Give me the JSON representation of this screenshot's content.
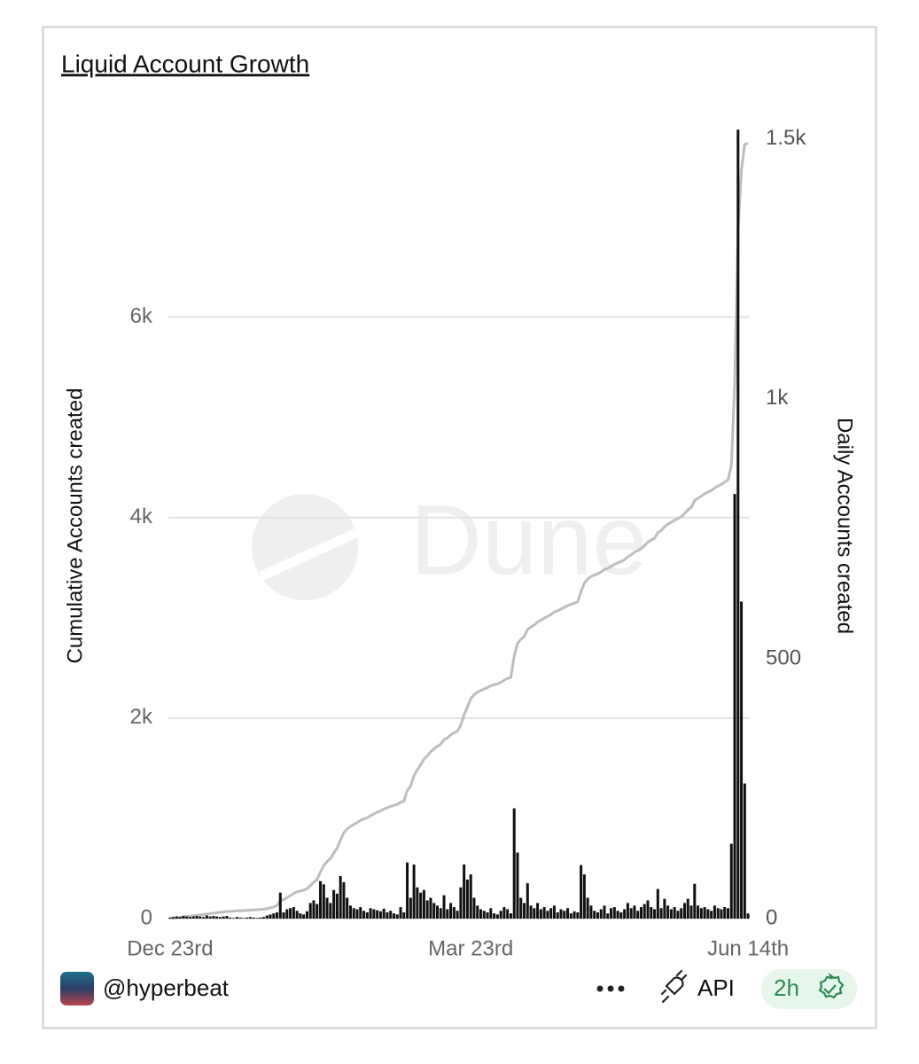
{
  "chart_data": {
    "type": "bar",
    "title": "Liquid Account Growth",
    "watermark": "Dune",
    "ylabel": "Cumulative Accounts created",
    "y2label": "Daily Accounts created",
    "categories": [
      "Dec 23rd",
      null,
      null,
      null,
      null,
      null,
      null,
      null,
      null,
      null,
      null,
      null,
      null,
      null,
      null,
      null,
      null,
      null,
      null,
      null,
      null,
      null,
      null,
      null,
      null,
      null,
      null,
      null,
      null,
      null,
      null,
      null,
      null,
      null,
      null,
      null,
      null,
      null,
      null,
      null,
      null,
      null,
      null,
      null,
      null,
      null,
      null,
      null,
      null,
      null,
      null,
      null,
      null,
      null,
      null,
      null,
      null,
      null,
      null,
      null,
      null,
      null,
      null,
      null,
      null,
      null,
      null,
      null,
      null,
      null,
      null,
      null,
      null,
      null,
      null,
      null,
      null,
      null,
      null,
      null,
      null,
      null,
      null,
      null,
      null,
      null,
      null,
      null,
      null,
      null,
      "Mar 23rd",
      null,
      null,
      null,
      null,
      null,
      null,
      null,
      null,
      null,
      null,
      null,
      null,
      null,
      null,
      null,
      null,
      null,
      null,
      null,
      null,
      null,
      null,
      null,
      null,
      null,
      null,
      null,
      null,
      null,
      null,
      null,
      null,
      null,
      null,
      null,
      null,
      null,
      null,
      null,
      null,
      null,
      null,
      null,
      null,
      null,
      null,
      null,
      null,
      null,
      null,
      null,
      null,
      null,
      null,
      null,
      null,
      null,
      null,
      null,
      null,
      null,
      null,
      null,
      null,
      null,
      null,
      null,
      null,
      null,
      null,
      null,
      null,
      null,
      null,
      null,
      null,
      null,
      null,
      null,
      null,
      null,
      null,
      "Jun 14th"
    ],
    "series": [
      {
        "type": "line",
        "color": "#bdbdbd",
        "values": [
          2,
          5,
          9,
          12,
          17,
          21,
          24,
          28,
          33,
          37,
          40,
          46,
          50,
          55,
          59,
          62,
          66,
          71,
          73,
          74,
          77,
          79,
          80,
          82,
          85,
          87,
          88,
          90,
          93,
          99,
          107,
          117,
          129,
          179,
          191,
          209,
          229,
          251,
          266,
          276,
          284,
          298,
          328,
          363,
          391,
          463,
          529,
          569,
          599,
          654,
          702,
          784,
          854,
          894,
          919,
          939,
          957,
          979,
          994,
          1006,
          1026,
          1044,
          1060,
          1074,
          1093,
          1105,
          1120,
          1130,
          1138,
          1160,
          1172,
          1280,
          1320,
          1424,
          1484,
          1534,
          1589,
          1624,
          1664,
          1694,
          1719,
          1739,
          1784,
          1802,
          1832,
          1854,
          1869,
          1929,
          2033,
          2108,
          2193,
          2233,
          2258,
          2276,
          2291,
          2303,
          2323,
          2333,
          2341,
          2356,
          2378,
          2396,
          2406,
          2618,
          2745,
          2785,
          2815,
          2883,
          2908,
          2928,
          2958,
          2976,
          2998,
          3013,
          3033,
          3058,
          3070,
          3088,
          3103,
          3123,
          3133,
          3147,
          3159,
          3262,
          3347,
          3387,
          3412,
          3427,
          3439,
          3457,
          3482,
          3492,
          3512,
          3534,
          3549,
          3561,
          3579,
          3609,
          3629,
          3654,
          3669,
          3691,
          3719,
          3754,
          3776,
          3794,
          3851,
          3871,
          3909,
          3934,
          3952,
          3974,
          3989,
          4009,
          4039,
          4077,
          4102,
          4169,
          4194,
          4214,
          4236,
          4254,
          4269,
          4294,
          4314,
          4332,
          4354,
          4374,
          4518,
          5335,
          6853,
          7463,
          7723,
          7733
        ]
      },
      {
        "type": "bar",
        "axis": "y2",
        "color": "#111111",
        "values": [
          2,
          3,
          4,
          3,
          5,
          4,
          3,
          4,
          5,
          4,
          3,
          6,
          4,
          5,
          4,
          3,
          4,
          5,
          2,
          1,
          3,
          2,
          1,
          2,
          3,
          2,
          1,
          2,
          3,
          6,
          8,
          10,
          12,
          50,
          12,
          18,
          20,
          22,
          15,
          10,
          8,
          14,
          30,
          35,
          28,
          72,
          66,
          40,
          30,
          55,
          48,
          82,
          70,
          40,
          25,
          20,
          18,
          22,
          15,
          12,
          20,
          18,
          16,
          14,
          19,
          12,
          15,
          10,
          8,
          22,
          12,
          108,
          40,
          104,
          60,
          50,
          55,
          35,
          40,
          30,
          25,
          20,
          45,
          18,
          30,
          22,
          15,
          60,
          104,
          75,
          85,
          40,
          25,
          18,
          15,
          12,
          20,
          10,
          8,
          15,
          22,
          18,
          10,
          212,
          127,
          40,
          30,
          68,
          25,
          20,
          30,
          18,
          22,
          15,
          20,
          25,
          12,
          18,
          15,
          20,
          10,
          14,
          12,
          103,
          85,
          40,
          25,
          15,
          12,
          18,
          25,
          10,
          20,
          22,
          15,
          12,
          18,
          30,
          20,
          25,
          15,
          22,
          28,
          35,
          22,
          18,
          57,
          20,
          38,
          25,
          18,
          22,
          15,
          20,
          30,
          38,
          25,
          67,
          25,
          20,
          22,
          18,
          15,
          25,
          20,
          18,
          22,
          20,
          144,
          817,
          1518,
          610,
          260,
          10
        ]
      }
    ],
    "ylim": [
      0,
      7880
    ],
    "yticks": [
      0,
      {
        "value": 2000,
        "label": "2k"
      },
      {
        "value": 4000,
        "label": "4k"
      },
      {
        "value": 6000,
        "label": "6k"
      }
    ],
    "y2lim": [
      0,
      1520
    ],
    "y2ticks": [
      0,
      500,
      {
        "value": 1000,
        "label": "1k"
      },
      {
        "value": 1500,
        "label": "1.5k"
      }
    ],
    "grid": true
  },
  "footer": {
    "user": "@hyperbeat",
    "api": "API",
    "age": "2h"
  }
}
